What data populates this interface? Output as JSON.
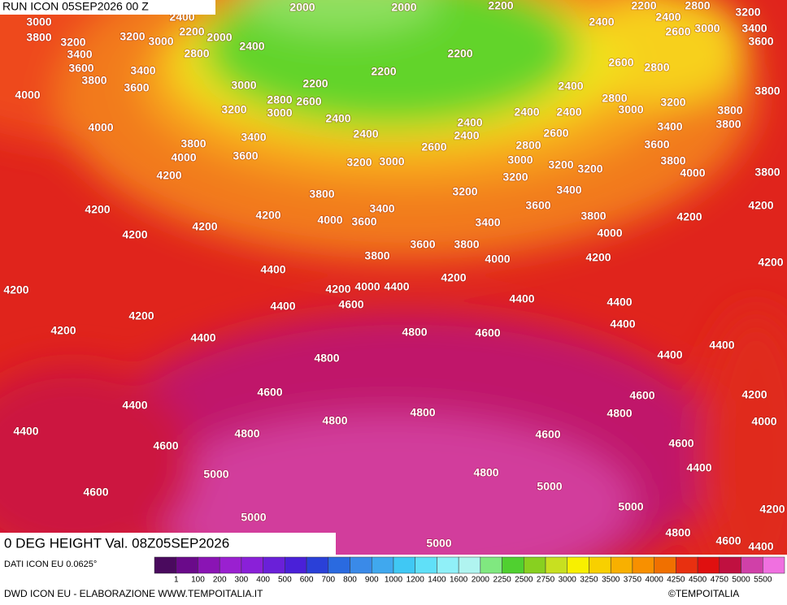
{
  "header": {
    "run": "RUN ICON 05SEP2026 00 Z"
  },
  "title": "0 DEG HEIGHT Val. 08Z05SEP2026",
  "contour_labels": [
    3000,
    2400,
    2000,
    2000,
    2200,
    2200,
    2800,
    3200,
    3800,
    3200,
    3200,
    3000,
    2200,
    2000,
    2400,
    2400,
    2400,
    2600,
    3000,
    3400,
    3600,
    3400,
    3600,
    2800,
    2200,
    2600,
    2800,
    3800,
    3400,
    2200,
    2200,
    3000,
    2400,
    3600,
    4000,
    2800,
    2600,
    2800,
    3200,
    3800,
    3000,
    3200,
    3000,
    2400,
    2400,
    3800,
    2400,
    2400,
    4000,
    3400,
    3800,
    2400,
    2400,
    2600,
    3400,
    3800,
    3600,
    2600,
    2800,
    4000,
    3600,
    3800,
    3000,
    3200,
    3000,
    3200,
    3200,
    3800,
    4200,
    4000,
    3200,
    3800,
    3200,
    3400,
    4200,
    3400,
    3600,
    4200,
    4000,
    3600,
    3800,
    4200,
    4200,
    3400,
    4200,
    4000,
    4200,
    3600,
    3800,
    3800,
    4000,
    4200,
    4200,
    4400,
    4200,
    4200,
    4200,
    4000,
    4400,
    4400,
    4400,
    4600,
    4400,
    4200,
    4400,
    4200,
    4800,
    4600,
    4400,
    4800,
    4400,
    4400,
    4600,
    4600,
    4200,
    4400,
    4800,
    4800,
    4800,
    4000,
    4400,
    4800,
    4600,
    4600,
    4600,
    5000,
    4800,
    4400,
    5000,
    4600,
    5000,
    4200,
    5000,
    4800,
    4600,
    4400,
    5000
  ],
  "legend": {
    "source": "DATI ICON EU 0.0625°",
    "labels": [
      1,
      100,
      200,
      300,
      400,
      500,
      600,
      700,
      800,
      900,
      1000,
      1200,
      1400,
      1600,
      2000,
      2250,
      2500,
      2750,
      3000,
      3250,
      3500,
      3750,
      4000,
      4250,
      4500,
      4750,
      5000,
      5500
    ],
    "colors": [
      "#4a0a5e",
      "#6a0a8a",
      "#8a14b4",
      "#9a20d0",
      "#8a20d8",
      "#6a20d8",
      "#4a20d8",
      "#2a40d8",
      "#2a6ae0",
      "#3a8ae8",
      "#40a8ee",
      "#40c8f4",
      "#60e0f8",
      "#90f0f8",
      "#b0f4f0",
      "#80e880",
      "#50d030",
      "#88d020",
      "#c8e020",
      "#f8f000",
      "#f8d000",
      "#f8b000",
      "#f89000",
      "#f07000",
      "#e83010",
      "#e01010",
      "#c01040",
      "#d040a8",
      "#f070e0"
    ]
  },
  "footer": {
    "credit": "DWD ICON EU - ELABORAZIONE WWW.TEMPOITALIA.IT",
    "brand": "©TEMPOITALIA"
  }
}
